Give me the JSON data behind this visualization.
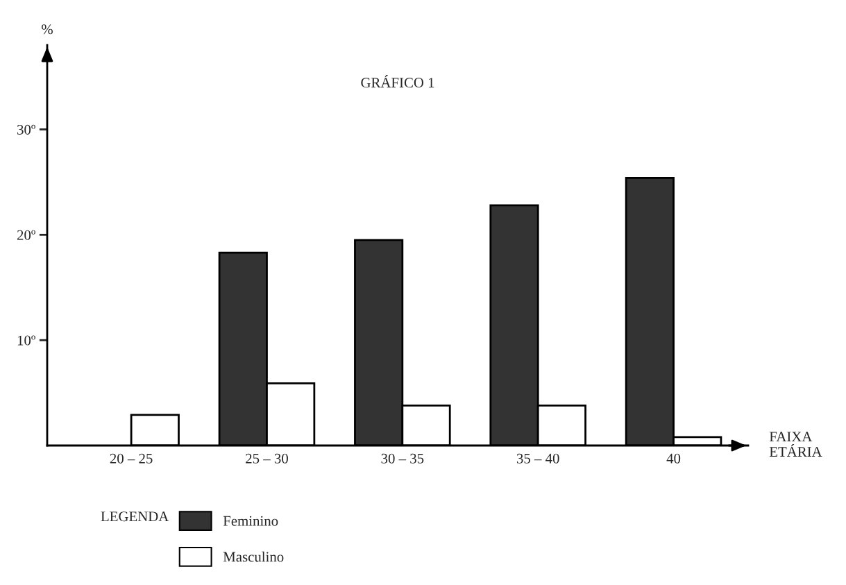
{
  "chart_data": {
    "type": "bar",
    "title": "GRÁFICO 1",
    "ylabel": "%",
    "xlabel": "FAIXA\nETÁRIA",
    "legend_title": "LEGENDA",
    "categories": [
      "20 – 25",
      "25 – 30",
      "30 – 35",
      "35 – 40",
      "40"
    ],
    "series": [
      {
        "name": "Feminino",
        "color": "#333333",
        "values": [
          null,
          18.3,
          19.5,
          22.8,
          25.4
        ]
      },
      {
        "name": "Masculino",
        "color": "#ffffff",
        "values": [
          2.9,
          5.9,
          3.8,
          3.8,
          0.8
        ]
      }
    ],
    "ylim": [
      0,
      38
    ],
    "yticks": [
      {
        "value": 10,
        "label": "10º"
      },
      {
        "value": 20,
        "label": "20º"
      },
      {
        "value": 30,
        "label": "30º"
      }
    ],
    "grid": false,
    "legend": "bottom left"
  }
}
